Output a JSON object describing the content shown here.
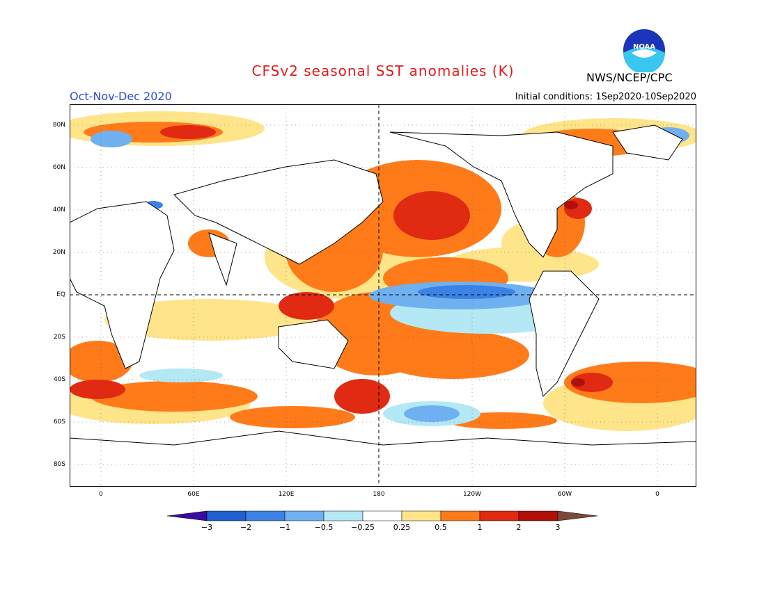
{
  "header": {
    "title": "CFSv2 seasonal SST anomalies (K)",
    "agency": "NWS/NCEP/CPC",
    "season": "Oct-Nov-Dec 2020",
    "initial_conditions": "Initial conditions: 1Sep2020-10Sep2020",
    "logo_text": "NOAA"
  },
  "axes": {
    "lat_labels": [
      "80N",
      "60N",
      "40N",
      "20N",
      "EQ",
      "20S",
      "40S",
      "60S",
      "80S"
    ],
    "lon_labels": [
      "0",
      "60E",
      "120E",
      "180",
      "120W",
      "60W",
      "0"
    ]
  },
  "colorbar": {
    "labels": [
      "-3",
      "-2",
      "-1",
      "-0.5",
      "-0.25",
      "0.25",
      "0.5",
      "1",
      "2",
      "3"
    ],
    "colors": [
      "#3a0da0",
      "#1f5fd0",
      "#3b82e6",
      "#6fb0f0",
      "#b4e8f4",
      "#ffffff",
      "#ffe58a",
      "#ff7b1a",
      "#e02a12",
      "#b0100a",
      "#7a4a3a"
    ]
  }
}
